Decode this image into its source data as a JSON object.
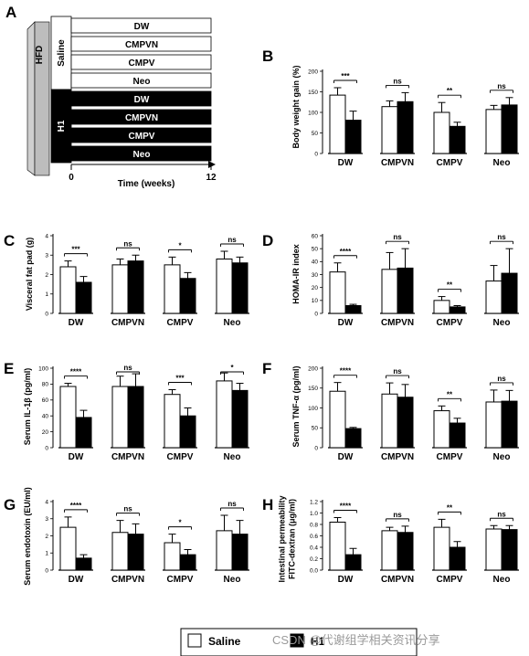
{
  "panel_a": {
    "label": "A",
    "hfd_label": "HFD",
    "saline_label": "Saline",
    "h1_label": "H1",
    "saline_rows": [
      "DW",
      "CMPVN",
      "CMPV",
      "Neo"
    ],
    "h1_rows": [
      "DW",
      "CMPVN",
      "CMPV",
      "Neo"
    ],
    "time_label": "Time (weeks)",
    "time_start": "0",
    "time_end": "12"
  },
  "legend": {
    "saline": "Saline",
    "h1": "H1"
  },
  "watermark": "CSDN @代谢组学相关资讯分享",
  "colors": {
    "saline": "#ffffff",
    "h1": "#000000",
    "stroke": "#000000"
  },
  "chart_data": [
    {
      "label": "B",
      "type": "bar",
      "ylabel": "Body weight gain (%)",
      "ylim": [
        0,
        200
      ],
      "yticks": [
        0,
        50,
        100,
        150,
        200
      ],
      "categories": [
        "DW",
        "CMPVN",
        "CMPV",
        "Neo"
      ],
      "series": [
        {
          "name": "Saline",
          "values": [
            142,
            114,
            100,
            107
          ],
          "errors": [
            18,
            14,
            24,
            10
          ]
        },
        {
          "name": "H1",
          "values": [
            81,
            126,
            66,
            118
          ],
          "errors": [
            22,
            22,
            10,
            18
          ]
        }
      ],
      "significance": [
        "***",
        "ns",
        "**",
        "ns"
      ]
    },
    {
      "label": "C",
      "type": "bar",
      "ylabel": "Visceral fat pad (g)",
      "ylim": [
        0,
        4
      ],
      "yticks": [
        0,
        1,
        2,
        3,
        4
      ],
      "categories": [
        "DW",
        "CMPVN",
        "CMPV",
        "Neo"
      ],
      "series": [
        {
          "name": "Saline",
          "values": [
            2.4,
            2.5,
            2.5,
            2.8
          ],
          "errors": [
            0.3,
            0.3,
            0.4,
            0.4
          ]
        },
        {
          "name": "H1",
          "values": [
            1.6,
            2.7,
            1.8,
            2.6
          ],
          "errors": [
            0.3,
            0.3,
            0.3,
            0.3
          ]
        }
      ],
      "significance": [
        "***",
        "ns",
        "*",
        "ns"
      ]
    },
    {
      "label": "D",
      "type": "bar",
      "ylabel": "HOMA-IR index",
      "ylim": [
        0,
        60
      ],
      "yticks": [
        0,
        10,
        20,
        30,
        40,
        50,
        60
      ],
      "categories": [
        "DW",
        "CMPVN",
        "CMPV",
        "Neo"
      ],
      "series": [
        {
          "name": "Saline",
          "values": [
            32,
            34,
            10,
            25
          ],
          "errors": [
            7,
            13,
            3,
            12
          ]
        },
        {
          "name": "H1",
          "values": [
            6,
            35,
            5,
            31
          ],
          "errors": [
            1,
            15,
            1,
            19
          ]
        }
      ],
      "significance": [
        "****",
        "ns",
        "**",
        "ns"
      ]
    },
    {
      "label": "E",
      "type": "bar",
      "ylabel": "Serum IL-1β (pg/ml)",
      "ylim": [
        0,
        100
      ],
      "yticks": [
        0,
        20,
        40,
        60,
        80,
        100
      ],
      "categories": [
        "DW",
        "CMPVN",
        "CMPV",
        "Neo"
      ],
      "series": [
        {
          "name": "Saline",
          "values": [
            77,
            77,
            67,
            84
          ],
          "errors": [
            4,
            13,
            6,
            10
          ]
        },
        {
          "name": "H1",
          "values": [
            38,
            77,
            40,
            72
          ],
          "errors": [
            9,
            16,
            10,
            9
          ]
        }
      ],
      "significance": [
        "****",
        "ns",
        "***",
        "*"
      ]
    },
    {
      "label": "F",
      "type": "bar",
      "ylabel": "Serum TNF-α (pg/ml)",
      "ylim": [
        0,
        200
      ],
      "yticks": [
        0,
        50,
        100,
        150,
        200
      ],
      "categories": [
        "DW",
        "CMPVN",
        "CMPV",
        "Neo"
      ],
      "series": [
        {
          "name": "Saline",
          "values": [
            142,
            135,
            93,
            115
          ],
          "errors": [
            22,
            28,
            12,
            30
          ]
        },
        {
          "name": "H1",
          "values": [
            48,
            127,
            62,
            117
          ],
          "errors": [
            3,
            32,
            12,
            27
          ]
        }
      ],
      "significance": [
        "****",
        "ns",
        "**",
        "ns"
      ]
    },
    {
      "label": "G",
      "type": "bar",
      "ylabel": "Serum endotoxin (EU/ml)",
      "ylim": [
        0,
        4
      ],
      "yticks": [
        0,
        1,
        2,
        3,
        4
      ],
      "categories": [
        "DW",
        "CMPVN",
        "CMPV",
        "Neo"
      ],
      "series": [
        {
          "name": "Saline",
          "values": [
            2.5,
            2.2,
            1.6,
            2.3
          ],
          "errors": [
            0.6,
            0.7,
            0.5,
            0.9
          ]
        },
        {
          "name": "H1",
          "values": [
            0.7,
            2.1,
            0.9,
            2.1
          ],
          "errors": [
            0.2,
            0.6,
            0.3,
            0.8
          ]
        }
      ],
      "significance": [
        "****",
        "ns",
        "*",
        "ns"
      ]
    },
    {
      "label": "H",
      "type": "bar",
      "ylabel": "Intestinal permeability FITC-dextran (μg/ml)",
      "ylabel_lines": [
        "Intestinal permeability",
        "FITC-dextran (μg/ml)"
      ],
      "ylim": [
        0,
        1.2
      ],
      "yticks": [
        0.0,
        0.2,
        0.4,
        0.6,
        0.8,
        1.0,
        1.2
      ],
      "ytick_format": 1,
      "categories": [
        "DW",
        "CMPVN",
        "CMPV",
        "Neo"
      ],
      "series": [
        {
          "name": "Saline",
          "values": [
            0.84,
            0.69,
            0.75,
            0.72
          ],
          "errors": [
            0.08,
            0.06,
            0.14,
            0.06
          ]
        },
        {
          "name": "H1",
          "values": [
            0.27,
            0.66,
            0.4,
            0.71
          ],
          "errors": [
            0.11,
            0.11,
            0.1,
            0.07
          ]
        }
      ],
      "significance": [
        "****",
        "ns",
        "**",
        "ns"
      ]
    }
  ]
}
